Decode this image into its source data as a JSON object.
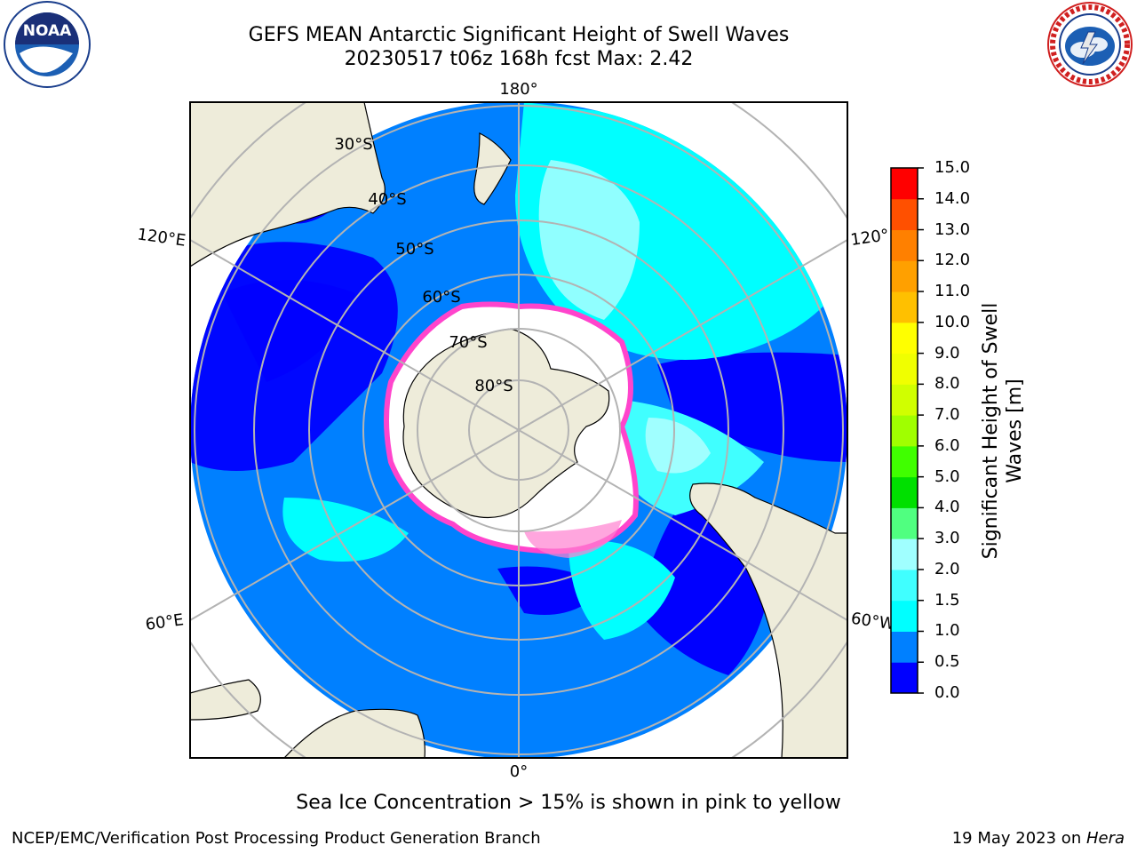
{
  "header": {
    "title_line1": "GEFS MEAN Antarctic Significant Height of Swell Waves",
    "title_line2": "20230517 t06z 168h fcst   Max: 2.42"
  },
  "logos": {
    "left": {
      "icon": "noaa-logo",
      "text": "NOAA",
      "ring_text": "NATIONAL OCEANIC AND ATMOSPHERIC ADMINISTRATION · U.S. DEPARTMENT OF COMMERCE"
    },
    "right": {
      "icon": "nws-logo",
      "ring_text": "NATIONAL WEATHER SERVICE"
    }
  },
  "map": {
    "projection": "south-polar-stereographic",
    "longitude_labels": [
      "180°",
      "120°E",
      "120°",
      "60°E",
      "60°W",
      "0°"
    ],
    "latitude_labels": [
      "30°S",
      "40°S",
      "50°S",
      "60°S",
      "70°S",
      "80°S"
    ],
    "colors": {
      "land": "#eeecda",
      "sea_ice": "#ffffff",
      "ice_edge": "#ff44cc",
      "gridline": "#b3b3b3"
    }
  },
  "colorbar": {
    "title": "Significant Height of Swell Waves [m]",
    "ticks": [
      "15.0",
      "14.0",
      "13.0",
      "12.0",
      "11.0",
      "10.0",
      "9.0",
      "8.0",
      "7.0",
      "6.0",
      "5.0",
      "4.0",
      "3.0",
      "2.0",
      "1.5",
      "1.0",
      "0.5",
      "0.0"
    ],
    "bands": [
      {
        "range": "0.0-0.5",
        "color": "#0000ff"
      },
      {
        "range": "0.5-1.0",
        "color": "#0080ff"
      },
      {
        "range": "1.0-1.5",
        "color": "#00ffff"
      },
      {
        "range": "1.5-2.0",
        "color": "#40ffff"
      },
      {
        "range": "2.0-3.0",
        "color": "#a0ffff"
      },
      {
        "range": "3.0-4.0",
        "color": "#50ff80"
      },
      {
        "range": "4.0-5.0",
        "color": "#00e000"
      },
      {
        "range": "5.0-6.0",
        "color": "#40ff00"
      },
      {
        "range": "6.0-7.0",
        "color": "#a0ff00"
      },
      {
        "range": "7.0-8.0",
        "color": "#d0ff00"
      },
      {
        "range": "8.0-9.0",
        "color": "#f0ff00"
      },
      {
        "range": "9.0-10.0",
        "color": "#ffff00"
      },
      {
        "range": "10.0-11.0",
        "color": "#ffc000"
      },
      {
        "range": "11.0-12.0",
        "color": "#ffa000"
      },
      {
        "range": "12.0-13.0",
        "color": "#ff8000"
      },
      {
        "range": "13.0-14.0",
        "color": "#ff5000"
      },
      {
        "range": "14.0-15.0",
        "color": "#ff0000"
      }
    ]
  },
  "note": "Sea Ice Concentration > 15% is shown in pink to yellow",
  "footer": {
    "left": "NCEP/EMC/Verification Post Processing Product Generation Branch",
    "date": "19 May 2023 on ",
    "machine": "Hera"
  }
}
